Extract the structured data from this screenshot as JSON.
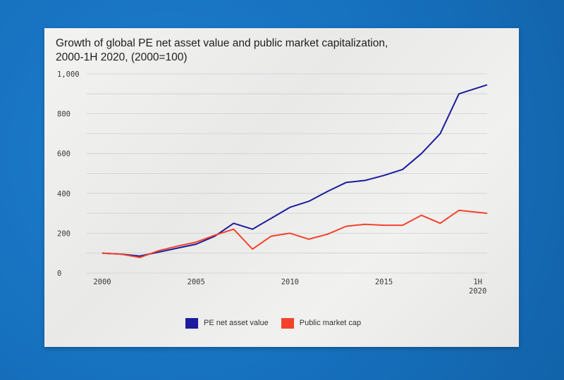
{
  "colors": {
    "pe": "#1c1c9c",
    "public": "#f2432a",
    "grid": "#cfcfcf"
  },
  "chart_data": {
    "type": "line",
    "title": "Growth of global PE net asset value and public market capitalization,\n2000-1H 2020, (2000=100)",
    "x": [
      2000,
      2001,
      2002,
      2003,
      2004,
      2005,
      2006,
      2007,
      2008,
      2009,
      2010,
      2011,
      2012,
      2013,
      2014,
      2015,
      2016,
      2017,
      2018,
      2019,
      2020.5
    ],
    "series": [
      {
        "name": "PE net asset value",
        "values": [
          100,
          95,
          85,
          105,
          125,
          145,
          185,
          250,
          220,
          275,
          330,
          360,
          410,
          455,
          465,
          490,
          520,
          600,
          700,
          900,
          945
        ]
      },
      {
        "name": "Public market cap",
        "values": [
          100,
          95,
          78,
          112,
          135,
          155,
          190,
          220,
          120,
          185,
          200,
          170,
          195,
          235,
          245,
          240,
          240,
          290,
          250,
          315,
          300
        ]
      }
    ],
    "y_ticks": [
      "1,000",
      "800",
      "600",
      "400",
      "200",
      "0"
    ],
    "y_tick_values": [
      1000,
      800,
      600,
      400,
      200,
      0
    ],
    "x_ticks": [
      {
        "value": 2000,
        "label": "2000",
        "label2": ""
      },
      {
        "value": 2005,
        "label": "2005",
        "label2": ""
      },
      {
        "value": 2010,
        "label": "2010",
        "label2": ""
      },
      {
        "value": 2015,
        "label": "2015",
        "label2": ""
      },
      {
        "value": 2020,
        "label": "1H",
        "label2": "2020"
      }
    ],
    "ylim": [
      0,
      1000
    ],
    "xlim": [
      2000,
      2020.5
    ],
    "grid": true,
    "legend_position": "bottom-center"
  }
}
